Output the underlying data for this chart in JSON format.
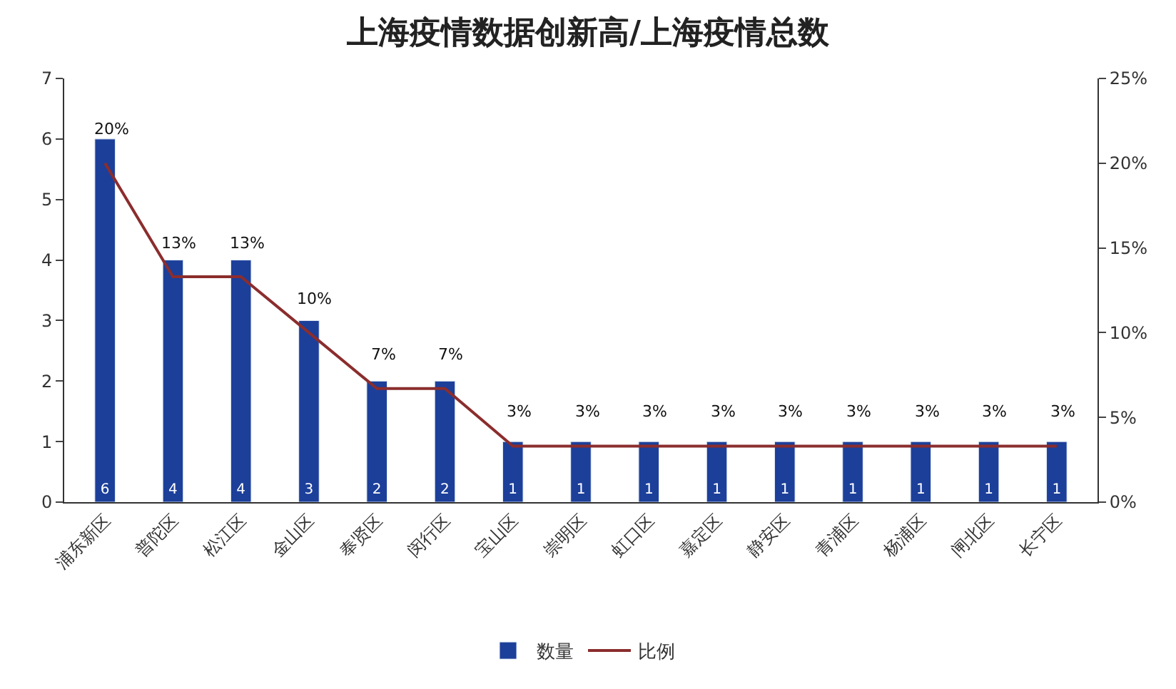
{
  "chart_data": {
    "type": "bar",
    "title": "上海疫情数据创新高/上海疫情总数",
    "categories": [
      "浦东新区",
      "普陀区",
      "松江区",
      "金山区",
      "奉贤区",
      "闵行区",
      "宝山区",
      "崇明区",
      "虹口区",
      "嘉定区",
      "静安区",
      "青浦区",
      "杨浦区",
      "闸北区",
      "长宁区"
    ],
    "series": [
      {
        "name": "数量",
        "color": "#1c3f9a",
        "values": [
          6,
          4,
          4,
          3,
          2,
          2,
          1,
          1,
          1,
          1,
          1,
          1,
          1,
          1,
          1
        ],
        "value_labels": [
          "6",
          "4",
          "4",
          "3",
          "2",
          "2",
          "1",
          "1",
          "1",
          "1",
          "1",
          "1",
          "1",
          "1",
          "1"
        ]
      },
      {
        "name": "比例",
        "type": "line",
        "axis": "y2",
        "color": "#8b2d2d",
        "values": [
          20,
          13.3,
          13.3,
          10,
          6.7,
          6.7,
          3.3,
          3.3,
          3.3,
          3.3,
          3.3,
          3.3,
          3.3,
          3.3,
          3.3
        ],
        "value_labels": [
          "20%",
          "13%",
          "13%",
          "10%",
          "7%",
          "7%",
          "3%",
          "3%",
          "3%",
          "3%",
          "3%",
          "3%",
          "3%",
          "3%",
          "3%"
        ]
      }
    ],
    "ylim": [
      0,
      7
    ],
    "yticks": [
      0,
      1,
      2,
      3,
      4,
      5,
      6,
      7
    ],
    "y2lim": [
      0,
      25
    ],
    "y2ticks": [
      {
        "value": 0,
        "label": "0%"
      },
      {
        "value": 5,
        "label": "5%"
      },
      {
        "value": 10,
        "label": "10%"
      },
      {
        "value": 15,
        "label": "15%"
      },
      {
        "value": 20,
        "label": "20%"
      },
      {
        "value": 25,
        "label": "25%"
      }
    ],
    "legend": "bottom",
    "marker": "none"
  }
}
